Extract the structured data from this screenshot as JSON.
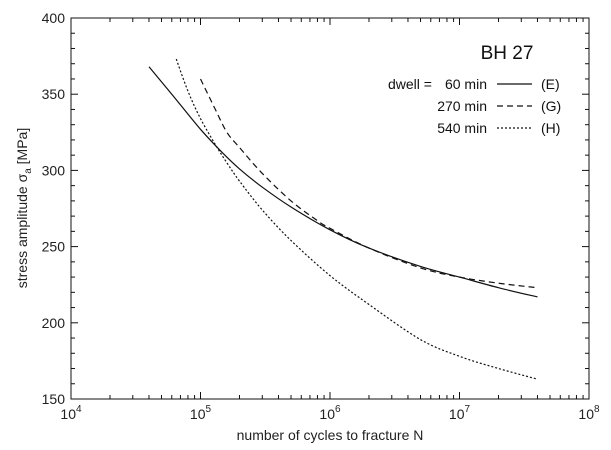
{
  "chart_data": {
    "type": "line",
    "title": "BH 27",
    "xlabel": "number of cycles to fracture  N",
    "ylabel_main": "stress amplitude ",
    "ylabel_symbol": "σ",
    "ylabel_sub": "a",
    "ylabel_unit": " [MPa]",
    "xscale": "log",
    "xlim": [
      10000,
      100000000
    ],
    "ylim": [
      150,
      400
    ],
    "x_ticks": [
      {
        "base": "10",
        "exp": "4",
        "value": 10000
      },
      {
        "base": "10",
        "exp": "5",
        "value": 100000
      },
      {
        "base": "10",
        "exp": "6",
        "value": 1000000
      },
      {
        "base": "10",
        "exp": "7",
        "value": 10000000
      },
      {
        "base": "10",
        "exp": "8",
        "value": 100000000
      }
    ],
    "y_ticks": [
      150,
      200,
      250,
      300,
      350,
      400
    ],
    "grid": false,
    "legend_position": "top-right",
    "legend_prefix": "dwell =",
    "series": [
      {
        "name": "60 min",
        "code": "(E)",
        "dash": "solid",
        "points": [
          [
            40000,
            368
          ],
          [
            60000,
            350
          ],
          [
            100000,
            327
          ],
          [
            150000,
            311
          ],
          [
            200000,
            301
          ],
          [
            300000,
            289
          ],
          [
            500000,
            276
          ],
          [
            1000000,
            261
          ],
          [
            2000000,
            249
          ],
          [
            5000000,
            237
          ],
          [
            10000000,
            230
          ],
          [
            20000000,
            223
          ],
          [
            40000000,
            217
          ]
        ]
      },
      {
        "name": "270 min",
        "code": "(G)",
        "dash": "dashed",
        "points": [
          [
            100000,
            360
          ],
          [
            130000,
            340
          ],
          [
            160000,
            325
          ],
          [
            200000,
            315
          ],
          [
            300000,
            298
          ],
          [
            500000,
            280
          ],
          [
            800000,
            267
          ],
          [
            1000000,
            262
          ],
          [
            2000000,
            249
          ],
          [
            5000000,
            236
          ],
          [
            10000000,
            230
          ],
          [
            20000000,
            226
          ],
          [
            40000000,
            223
          ]
        ]
      },
      {
        "name": "540 min",
        "code": "(H)",
        "dash": "dotted",
        "points": [
          [
            65000,
            373
          ],
          [
            80000,
            352
          ],
          [
            100000,
            334
          ],
          [
            130000,
            317
          ],
          [
            160000,
            305
          ],
          [
            200000,
            293
          ],
          [
            300000,
            274
          ],
          [
            500000,
            254
          ],
          [
            1000000,
            231
          ],
          [
            2000000,
            212
          ],
          [
            5000000,
            189
          ],
          [
            10000000,
            178
          ],
          [
            20000000,
            170
          ],
          [
            40000000,
            163
          ]
        ]
      }
    ]
  }
}
